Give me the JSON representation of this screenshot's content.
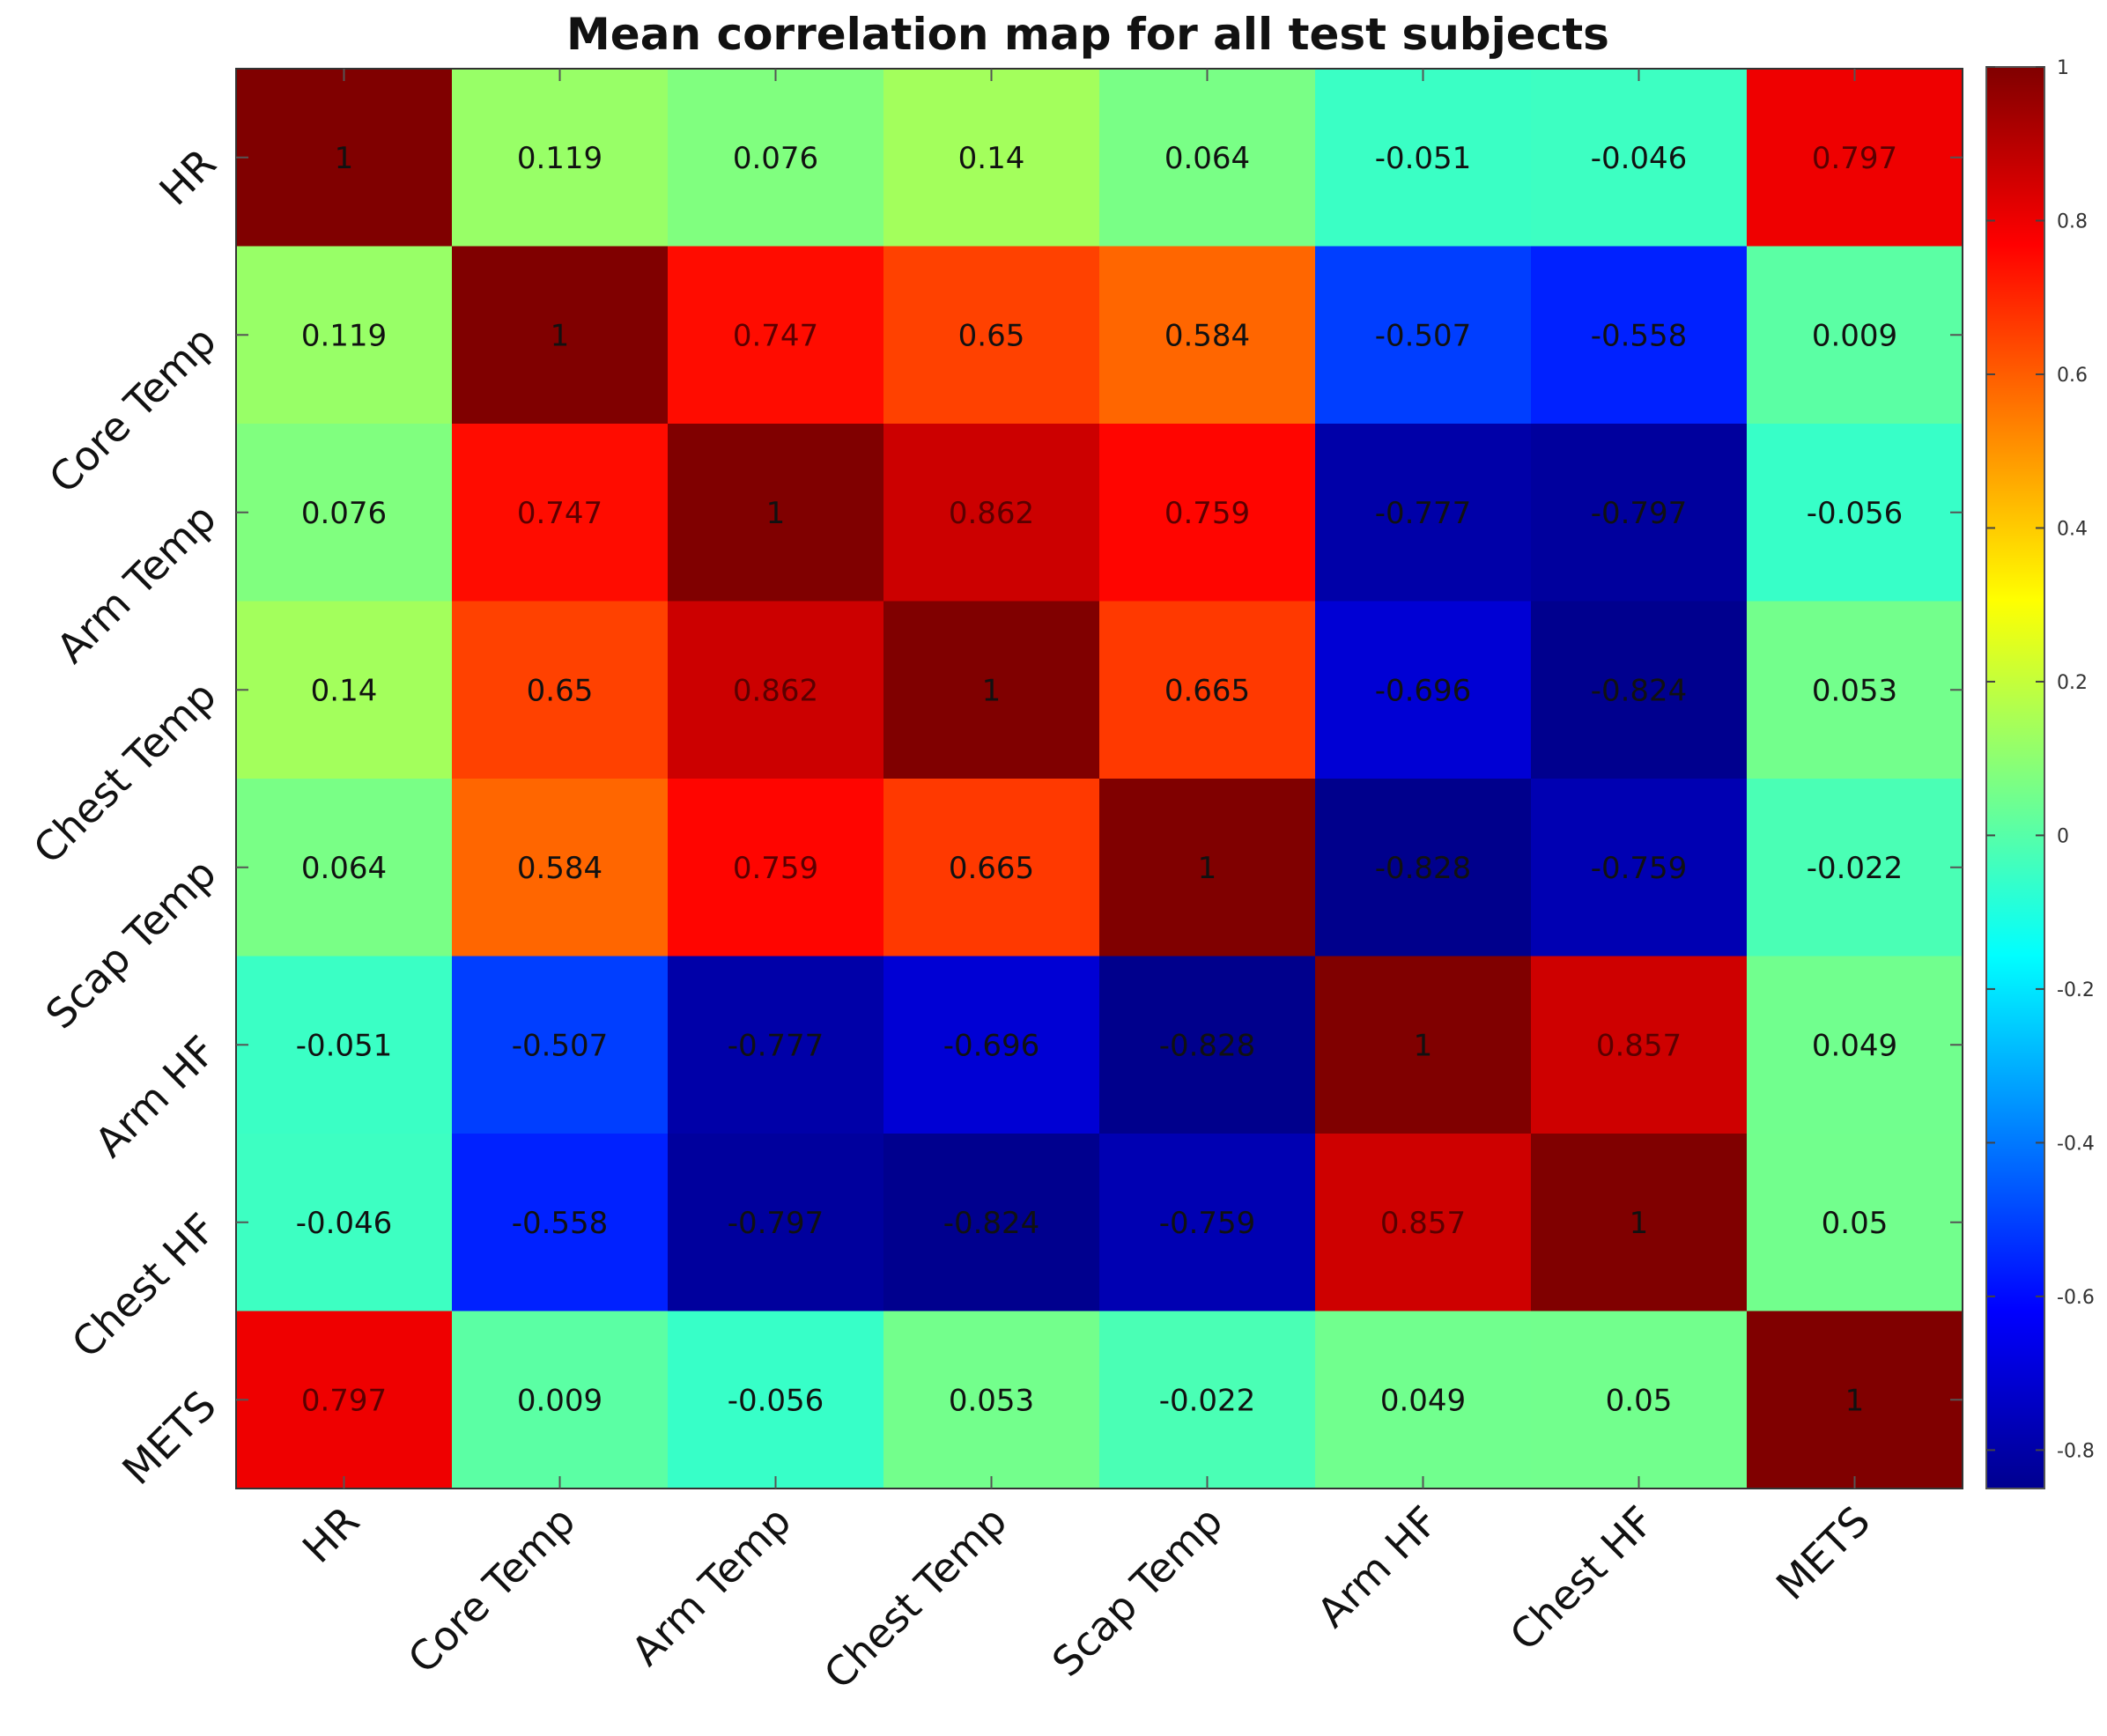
{
  "chart_data": {
    "type": "heatmap",
    "title": "Mean correlation map for all test subjects",
    "xlabel": "",
    "ylabel": "",
    "row_labels": [
      "HR",
      "Core Temp",
      "Arm Temp",
      "Chest Temp",
      "Scap Temp",
      "Arm HF",
      "Chest HF",
      "METS"
    ],
    "col_labels": [
      "HR",
      "Core Temp",
      "Arm Temp",
      "Chest Temp",
      "Scap Temp",
      "Arm HF",
      "Chest HF",
      "METS"
    ],
    "values": [
      [
        1,
        0.119,
        0.076,
        0.14,
        0.064,
        -0.051,
        -0.046,
        0.797
      ],
      [
        0.119,
        1,
        0.747,
        0.65,
        0.584,
        -0.507,
        -0.558,
        0.009
      ],
      [
        0.076,
        0.747,
        1,
        0.862,
        0.759,
        -0.777,
        -0.797,
        -0.056
      ],
      [
        0.14,
        0.65,
        0.862,
        1,
        0.665,
        -0.696,
        -0.824,
        0.053
      ],
      [
        0.064,
        0.584,
        0.759,
        0.665,
        1,
        -0.828,
        -0.759,
        -0.022
      ],
      [
        -0.051,
        -0.507,
        -0.777,
        -0.696,
        -0.828,
        1,
        0.857,
        0.049
      ],
      [
        -0.046,
        -0.558,
        -0.797,
        -0.824,
        -0.759,
        0.857,
        1,
        0.05
      ],
      [
        0.797,
        0.009,
        -0.056,
        0.053,
        -0.022,
        0.049,
        0.05,
        1
      ]
    ],
    "value_labels": [
      [
        "1",
        "0.119",
        "0.076",
        "0.14",
        "0.064",
        "-0.051",
        "-0.046",
        "0.797"
      ],
      [
        "0.119",
        "1",
        "0.747",
        "0.65",
        "0.584",
        "-0.507",
        "-0.558",
        "0.009"
      ],
      [
        "0.076",
        "0.747",
        "1",
        "0.862",
        "0.759",
        "-0.777",
        "-0.797",
        "-0.056"
      ],
      [
        "0.14",
        "0.65",
        "0.862",
        "1",
        "0.665",
        "-0.696",
        "-0.824",
        "0.053"
      ],
      [
        "0.064",
        "0.584",
        "0.759",
        "0.665",
        "1",
        "-0.828",
        "-0.759",
        "-0.022"
      ],
      [
        "-0.051",
        "-0.507",
        "-0.777",
        "-0.696",
        "-0.828",
        "1",
        "0.857",
        "0.049"
      ],
      [
        "-0.046",
        "-0.558",
        "-0.797",
        "-0.824",
        "-0.759",
        "0.857",
        "1",
        "0.05"
      ],
      [
        "0.797",
        "0.009",
        "-0.056",
        "0.053",
        "-0.022",
        "0.049",
        "0.05",
        "1"
      ]
    ],
    "colorbar": {
      "colormap": "jet",
      "range": [
        -0.85,
        1.0
      ],
      "ticks": [
        1,
        0.8,
        0.6,
        0.4,
        0.2,
        0,
        -0.2,
        -0.4,
        -0.6,
        -0.8
      ],
      "tick_labels": [
        "1",
        "0.8",
        "0.6",
        "0.4",
        "0.2",
        "0",
        "-0.2",
        "-0.4",
        "-0.6",
        "-0.8"
      ],
      "placement": "right"
    }
  }
}
